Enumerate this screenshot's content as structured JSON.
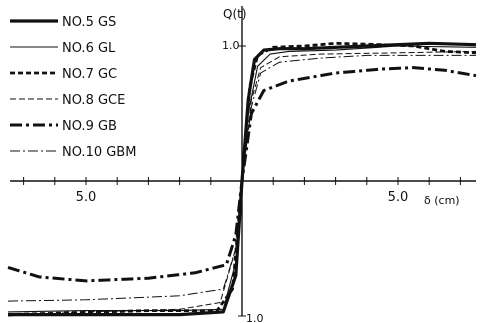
{
  "chart_data": {
    "type": "line",
    "xlabel": "δ (cm)",
    "ylabel": "Q(t)",
    "xlim": [
      -7.6,
      7.6
    ],
    "ylim": [
      -1.0,
      1.05
    ],
    "x_ticks": [
      -5.0,
      5.0
    ],
    "x_tick_labels": [
      "5.0",
      "5.0"
    ],
    "y_tick_labels": [
      "1.0",
      "1.0"
    ],
    "grid": false,
    "legend_position": "top-left",
    "series": [
      {
        "name": "NO.5 GS",
        "style": "thick-solid",
        "points": [
          [
            -7.5,
            -0.99
          ],
          [
            -5.0,
            -0.99
          ],
          [
            -2.0,
            -0.99
          ],
          [
            -0.6,
            -0.97
          ],
          [
            -0.2,
            -0.7
          ],
          [
            0.0,
            0.0
          ],
          [
            0.2,
            0.6
          ],
          [
            0.4,
            0.9
          ],
          [
            0.7,
            0.97
          ],
          [
            1.2,
            0.98
          ],
          [
            2.0,
            0.98
          ],
          [
            4.0,
            1.0
          ],
          [
            6.0,
            1.02
          ],
          [
            7.5,
            1.01
          ]
        ]
      },
      {
        "name": "NO.6 GL",
        "style": "thin-solid",
        "points": [
          [
            -7.5,
            -0.97
          ],
          [
            -5.0,
            -0.96
          ],
          [
            -2.0,
            -0.96
          ],
          [
            -0.6,
            -0.95
          ],
          [
            -0.2,
            -0.6
          ],
          [
            0.0,
            0.0
          ],
          [
            0.2,
            0.5
          ],
          [
            0.5,
            0.85
          ],
          [
            0.9,
            0.94
          ],
          [
            1.5,
            0.96
          ],
          [
            3.0,
            0.97
          ],
          [
            5.0,
            1.0
          ],
          [
            7.5,
            0.99
          ]
        ]
      },
      {
        "name": "NO.7 GC",
        "style": "heavy-dashed",
        "points": [
          [
            -7.5,
            -0.99
          ],
          [
            -6.0,
            -0.98
          ],
          [
            -3.0,
            -0.96
          ],
          [
            -0.8,
            -0.96
          ],
          [
            -0.3,
            -0.8
          ],
          [
            0.0,
            0.0
          ],
          [
            0.25,
            0.7
          ],
          [
            0.5,
            0.93
          ],
          [
            1.0,
            0.99
          ],
          [
            2.0,
            1.0
          ],
          [
            3.0,
            1.02
          ],
          [
            4.5,
            1.01
          ],
          [
            5.5,
            1.0
          ],
          [
            6.5,
            0.96
          ],
          [
            7.5,
            0.95
          ]
        ]
      },
      {
        "name": "NO.8 GCE",
        "style": "thin-dashed",
        "points": [
          [
            -7.5,
            -1.0
          ],
          [
            -5.0,
            -0.97
          ],
          [
            -2.0,
            -0.95
          ],
          [
            -0.7,
            -0.9
          ],
          [
            -0.2,
            -0.5
          ],
          [
            0.0,
            0.0
          ],
          [
            0.3,
            0.6
          ],
          [
            0.6,
            0.84
          ],
          [
            1.2,
            0.92
          ],
          [
            2.5,
            0.94
          ],
          [
            5.0,
            0.95
          ],
          [
            7.5,
            0.96
          ]
        ]
      },
      {
        "name": "NO.9 GB",
        "style": "thick-dash-dot",
        "points": [
          [
            -7.5,
            -0.64
          ],
          [
            -6.5,
            -0.71
          ],
          [
            -5.0,
            -0.74
          ],
          [
            -3.0,
            -0.72
          ],
          [
            -1.5,
            -0.68
          ],
          [
            -0.5,
            -0.62
          ],
          [
            -0.2,
            -0.4
          ],
          [
            0.0,
            0.0
          ],
          [
            0.3,
            0.5
          ],
          [
            0.7,
            0.67
          ],
          [
            1.5,
            0.74
          ],
          [
            3.0,
            0.8
          ],
          [
            4.5,
            0.83
          ],
          [
            5.5,
            0.84
          ],
          [
            6.5,
            0.82
          ],
          [
            7.5,
            0.78
          ]
        ]
      },
      {
        "name": "NO.10 GBM",
        "style": "thin-dash-dot",
        "points": [
          [
            -7.5,
            -0.89
          ],
          [
            -5.0,
            -0.88
          ],
          [
            -2.0,
            -0.85
          ],
          [
            -0.6,
            -0.8
          ],
          [
            -0.2,
            -0.5
          ],
          [
            0.0,
            0.0
          ],
          [
            0.3,
            0.55
          ],
          [
            0.6,
            0.8
          ],
          [
            1.2,
            0.88
          ],
          [
            2.5,
            0.91
          ],
          [
            4.0,
            0.93
          ],
          [
            5.5,
            0.93
          ],
          [
            7.5,
            0.93
          ]
        ]
      }
    ]
  }
}
